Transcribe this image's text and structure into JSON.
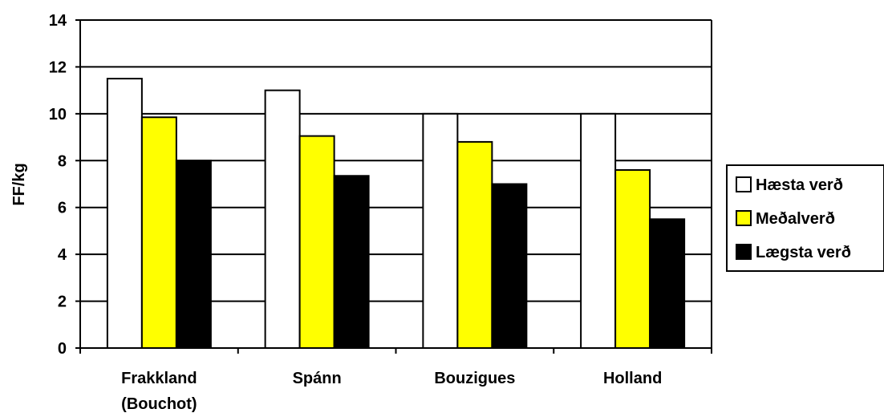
{
  "chart_data": {
    "type": "bar",
    "title": "",
    "xlabel": "",
    "ylabel": "FF/kg",
    "ylim": [
      0,
      14
    ],
    "yticks": [
      0,
      2,
      4,
      6,
      8,
      10,
      12,
      14
    ],
    "grid": true,
    "legend_position": "right",
    "categories": [
      {
        "line1": "Frakkland",
        "line2": "(Bouchot)"
      },
      {
        "line1": "Spánn",
        "line2": ""
      },
      {
        "line1": "Bouzigues",
        "line2": ""
      },
      {
        "line1": "Holland",
        "line2": ""
      }
    ],
    "series": [
      {
        "name": "Hæsta verð",
        "color": "#ffffff",
        "values": [
          11.5,
          11.0,
          10.0,
          10.0
        ]
      },
      {
        "name": "Meðalverð",
        "color": "#ffff00",
        "values": [
          9.85,
          9.05,
          8.8,
          7.6
        ]
      },
      {
        "name": "Lægsta verð",
        "color": "#000000",
        "values": [
          8.0,
          7.35,
          7.0,
          5.5
        ]
      }
    ]
  }
}
